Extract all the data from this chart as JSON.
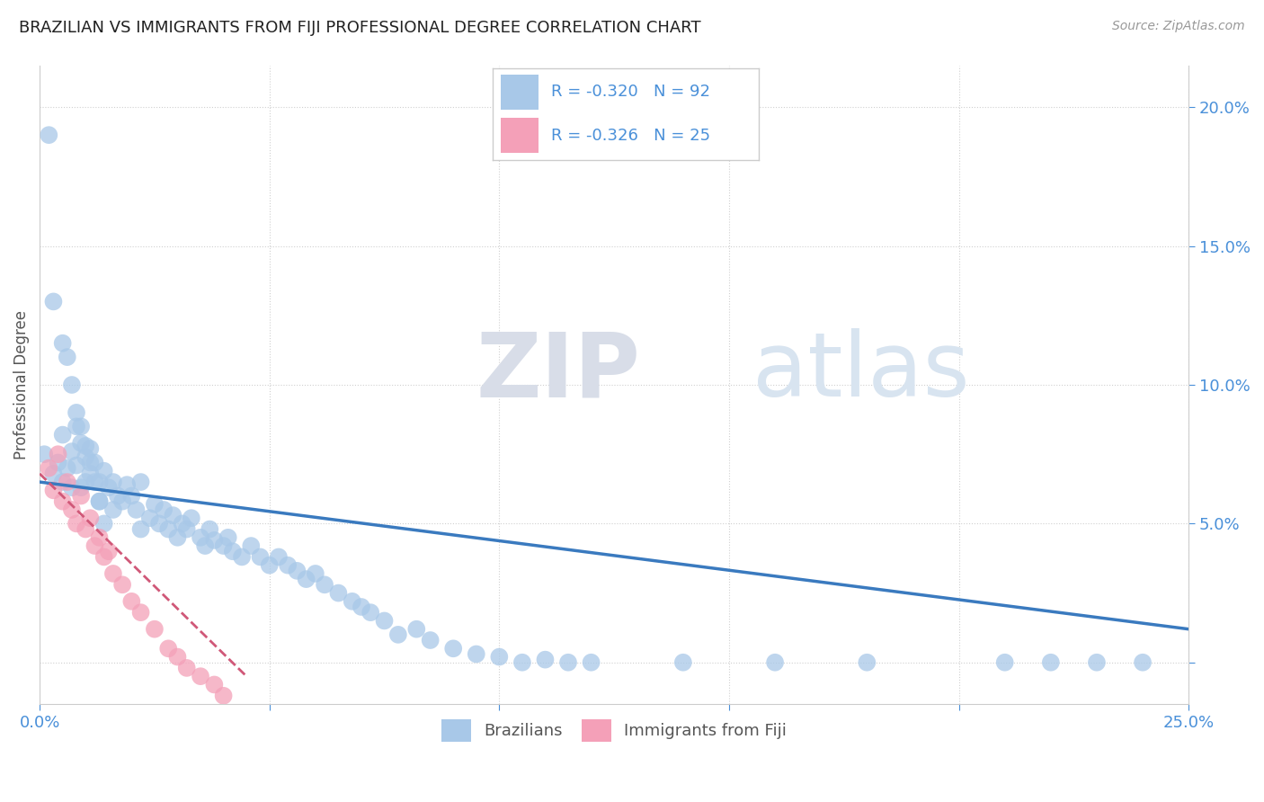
{
  "title": "BRAZILIAN VS IMMIGRANTS FROM FIJI PROFESSIONAL DEGREE CORRELATION CHART",
  "source": "Source: ZipAtlas.com",
  "ylabel": "Professional Degree",
  "xlim": [
    0.0,
    0.25
  ],
  "ylim": [
    -0.015,
    0.215
  ],
  "blue_color": "#a8c8e8",
  "pink_color": "#f4a0b8",
  "line_blue": "#3a7abf",
  "line_pink": "#d05878",
  "background_color": "#ffffff",
  "grid_color": "#d8d8d8",
  "brazil_x": [
    0.001,
    0.003,
    0.004,
    0.005,
    0.005,
    0.006,
    0.007,
    0.007,
    0.008,
    0.008,
    0.009,
    0.009,
    0.01,
    0.01,
    0.011,
    0.011,
    0.012,
    0.013,
    0.013,
    0.014,
    0.015,
    0.016,
    0.016,
    0.017,
    0.018,
    0.019,
    0.02,
    0.021,
    0.022,
    0.022,
    0.024,
    0.025,
    0.026,
    0.027,
    0.028,
    0.029,
    0.03,
    0.031,
    0.032,
    0.033,
    0.035,
    0.036,
    0.037,
    0.038,
    0.04,
    0.041,
    0.042,
    0.044,
    0.046,
    0.048,
    0.05,
    0.052,
    0.054,
    0.056,
    0.058,
    0.06,
    0.062,
    0.065,
    0.068,
    0.07,
    0.072,
    0.075,
    0.078,
    0.082,
    0.085,
    0.09,
    0.095,
    0.1,
    0.105,
    0.11,
    0.115,
    0.12,
    0.14,
    0.16,
    0.18,
    0.21,
    0.22,
    0.23,
    0.24,
    0.002,
    0.003,
    0.005,
    0.006,
    0.007,
    0.008,
    0.009,
    0.01,
    0.011,
    0.012,
    0.013,
    0.014
  ],
  "brazil_y": [
    0.075,
    0.068,
    0.072,
    0.065,
    0.082,
    0.07,
    0.076,
    0.063,
    0.085,
    0.071,
    0.079,
    0.063,
    0.074,
    0.065,
    0.077,
    0.068,
    0.072,
    0.065,
    0.058,
    0.069,
    0.063,
    0.065,
    0.055,
    0.06,
    0.058,
    0.064,
    0.06,
    0.055,
    0.065,
    0.048,
    0.052,
    0.057,
    0.05,
    0.055,
    0.048,
    0.053,
    0.045,
    0.05,
    0.048,
    0.052,
    0.045,
    0.042,
    0.048,
    0.044,
    0.042,
    0.045,
    0.04,
    0.038,
    0.042,
    0.038,
    0.035,
    0.038,
    0.035,
    0.033,
    0.03,
    0.032,
    0.028,
    0.025,
    0.022,
    0.02,
    0.018,
    0.015,
    0.01,
    0.012,
    0.008,
    0.005,
    0.003,
    0.002,
    0.0,
    0.001,
    0.0,
    0.0,
    0.0,
    0.0,
    0.0,
    0.0,
    0.0,
    0.0,
    0.0,
    0.19,
    0.13,
    0.115,
    0.11,
    0.1,
    0.09,
    0.085,
    0.078,
    0.072,
    0.065,
    0.058,
    0.05
  ],
  "fiji_x": [
    0.002,
    0.003,
    0.004,
    0.005,
    0.006,
    0.007,
    0.008,
    0.009,
    0.01,
    0.011,
    0.012,
    0.013,
    0.014,
    0.015,
    0.016,
    0.018,
    0.02,
    0.022,
    0.025,
    0.028,
    0.03,
    0.032,
    0.035,
    0.038,
    0.04
  ],
  "fiji_y": [
    0.07,
    0.062,
    0.075,
    0.058,
    0.065,
    0.055,
    0.05,
    0.06,
    0.048,
    0.052,
    0.042,
    0.045,
    0.038,
    0.04,
    0.032,
    0.028,
    0.022,
    0.018,
    0.012,
    0.005,
    0.002,
    -0.002,
    -0.005,
    -0.008,
    -0.012
  ],
  "line_blue_x0": 0.0,
  "line_blue_y0": 0.065,
  "line_blue_x1": 0.25,
  "line_blue_y1": 0.012,
  "line_pink_x0": 0.0,
  "line_pink_y0": 0.068,
  "line_pink_x1": 0.045,
  "line_pink_y1": -0.005
}
